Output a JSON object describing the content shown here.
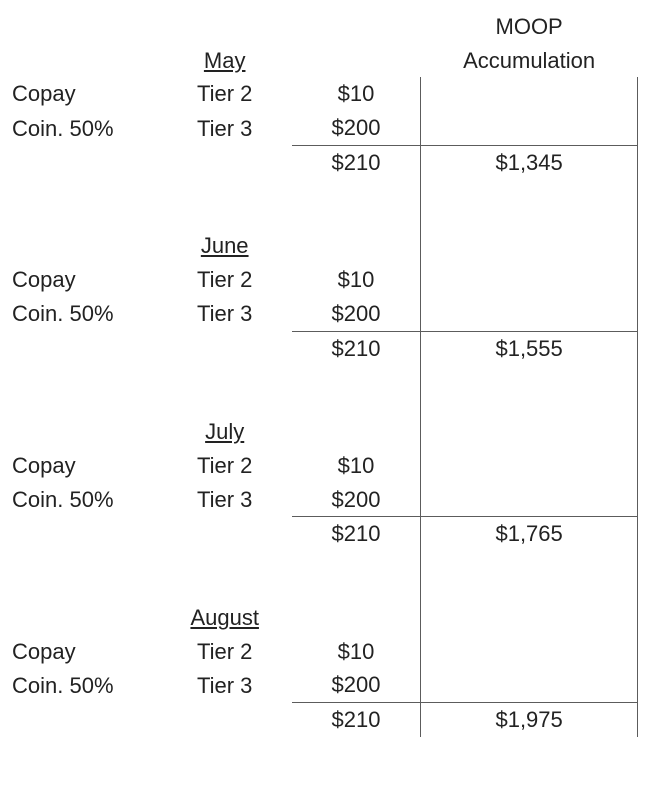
{
  "header": {
    "moop_line1": "MOOP",
    "moop_line2": "Accumulation"
  },
  "colors": {
    "text": "#222222",
    "rule": "#5c5c5c",
    "background": "#ffffff"
  },
  "font": {
    "family": "Arial, Helvetica, sans-serif",
    "size_pt": 17
  },
  "labels": {
    "copay": "Copay",
    "coin": "Coin. 50%",
    "tier2": "Tier 2",
    "tier3": "Tier 3"
  },
  "months": [
    {
      "name": "May",
      "rows": [
        {
          "label_key": "copay",
          "tier_key": "tier2",
          "amount": "$10"
        },
        {
          "label_key": "coin",
          "tier_key": "tier3",
          "amount": "$200"
        }
      ],
      "subtotal": "$210",
      "moop": "$1,345"
    },
    {
      "name": "June",
      "rows": [
        {
          "label_key": "copay",
          "tier_key": "tier2",
          "amount": "$10"
        },
        {
          "label_key": "coin",
          "tier_key": "tier3",
          "amount": "$200"
        }
      ],
      "subtotal": "$210",
      "moop": "$1,555"
    },
    {
      "name": "July",
      "rows": [
        {
          "label_key": "copay",
          "tier_key": "tier2",
          "amount": "$10"
        },
        {
          "label_key": "coin",
          "tier_key": "tier3",
          "amount": "$200"
        }
      ],
      "subtotal": "$210",
      "moop": "$1,765"
    },
    {
      "name": "August",
      "rows": [
        {
          "label_key": "copay",
          "tier_key": "tier2",
          "amount": "$10"
        },
        {
          "label_key": "coin",
          "tier_key": "tier3",
          "amount": "$200"
        }
      ],
      "subtotal": "$210",
      "moop": "$1,975"
    }
  ]
}
